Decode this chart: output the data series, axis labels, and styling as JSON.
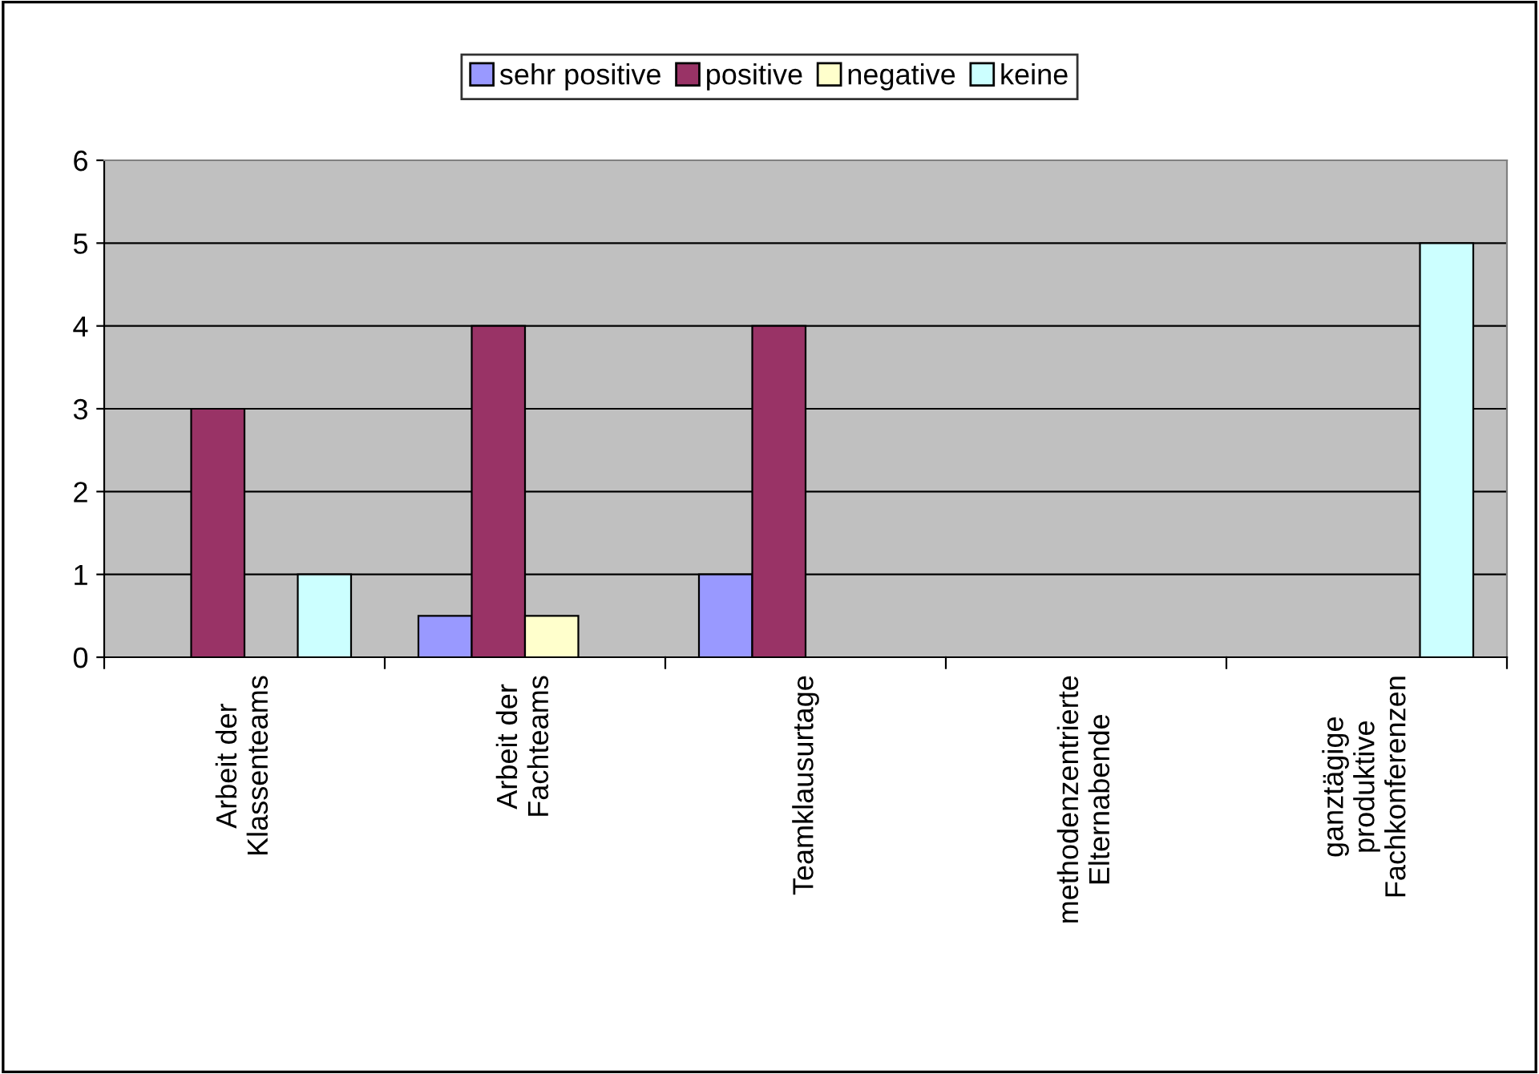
{
  "chart_data": {
    "type": "bar",
    "categories": [
      "Arbeit der\nKlassenteams",
      "Arbeit der\nFachteams",
      "Teamklausurtage",
      "methodenzentrierte\nElternabende",
      "ganztägige\nproduktive\nFachkonferenzen"
    ],
    "series": [
      {
        "name": "sehr positive",
        "color": "#9999ff",
        "values": [
          null,
          0.5,
          1,
          null,
          null
        ]
      },
      {
        "name": "positive",
        "color": "#993366",
        "values": [
          3,
          4,
          4,
          null,
          null
        ]
      },
      {
        "name": "negative",
        "color": "#ffffcc",
        "values": [
          null,
          0.5,
          null,
          null,
          null
        ]
      },
      {
        "name": "keine",
        "color": "#ccffff",
        "values": [
          1,
          null,
          null,
          null,
          5
        ]
      }
    ],
    "ylim": [
      0,
      6
    ],
    "yticks": [
      0,
      1,
      2,
      3,
      4,
      5,
      6
    ],
    "grid": "y",
    "legend": "top"
  }
}
